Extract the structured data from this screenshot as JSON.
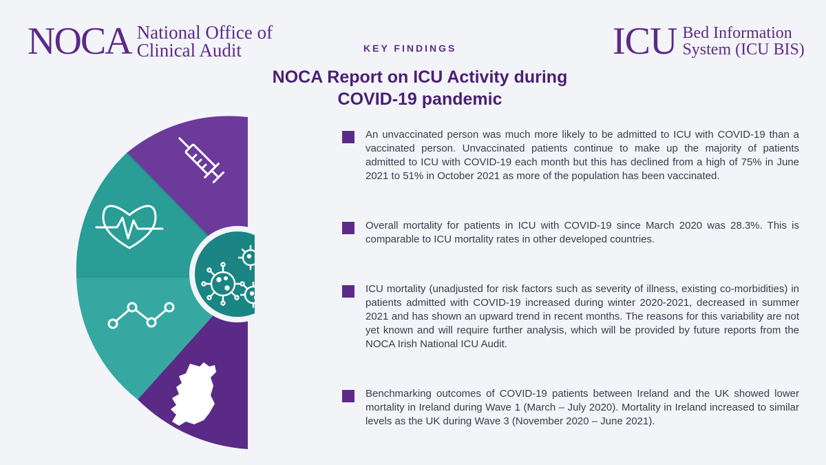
{
  "header": {
    "noca_mark": "NOCA",
    "noca_line1": "National Office of",
    "noca_line2": "Clinical Audit",
    "icu_mark": "ICU",
    "icu_line1": "Bed Information",
    "icu_line2": "System (ICU BIS)",
    "kicker": "KEY FINDINGS",
    "title_line1": "NOCA Report on ICU Activity during",
    "title_line2": "COVID-19 pandemic"
  },
  "graphic": {
    "segments": [
      "syringe-icon",
      "heart-rate-icon",
      "line-trend-icon",
      "ireland-map-icon"
    ],
    "center": "virus-icon",
    "colors": {
      "purple": "#6b3a9b",
      "teal": "#2a9d97",
      "teal_light": "#36a8a1",
      "center": "#1a8582"
    }
  },
  "findings": [
    "An unvaccinated person was much more likely to be admitted to ICU with COVID-19 than a vaccinated person. Unvaccinated patients continue to make up the majority of patients admitted to ICU with COVID-19 each month but this has declined from a high of 75% in June 2021 to 51% in October 2021 as more of the population has been vaccinated.",
    "Overall mortality for patients in ICU with COVID-19 since March 2020 was 28.3%. This is comparable to ICU mortality rates in other developed countries.",
    "ICU mortality (unadjusted for risk factors such as severity of illness, existing co-morbidities) in patients admitted with COVID-19 increased during winter 2020-2021, decreased in summer 2021 and has shown an upward trend in recent months. The reasons for this variability are not yet known and will require further analysis, which will be provided by future reports from the NOCA Irish National ICU Audit.",
    "Benchmarking outcomes of COVID-19 patients between Ireland and the UK showed lower mortality in Ireland during Wave 1 (March – July 2020). Mortality in Ireland increased to similar levels as the UK during Wave 3 (November 2020 – June 2021)."
  ]
}
